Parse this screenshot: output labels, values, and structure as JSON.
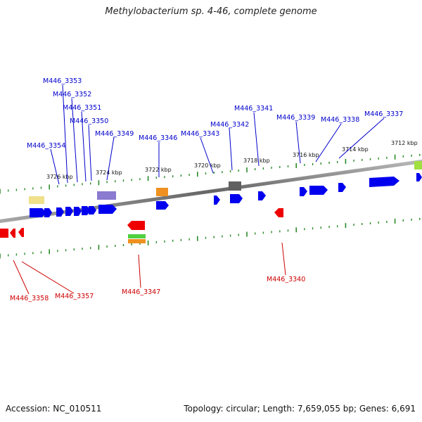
{
  "title": "Methylobacterium sp. 4-46, complete genome",
  "footer": {
    "accession": "Accession: NC_010511",
    "info": "Topology: circular; Length: 7,659,055 bp; Genes: 6,691"
  },
  "colors": {
    "forward_gene": "#0000ee",
    "reverse_gene": "#ee0000",
    "forward_label": "#0000cc",
    "reverse_label": "#cc0000",
    "tick": "#2a8a2a",
    "backbone": "#777777",
    "cog_yellow": "#f0e08a",
    "cog_purple": "#8a7ad0",
    "cog_orange": "#f09020",
    "cog_gray": "#606060",
    "cog_green": "#50d040",
    "cog_lime": "#a0e040"
  },
  "scale_labels": [
    "3726 kbp",
    "3724 kbp",
    "3722 kbp",
    "3720 kbp",
    "3718 kbp",
    "3716 kbp",
    "3714 kbp",
    "3712 kbp"
  ],
  "forward_gene_labels": [
    "M446_3354",
    "M446_3353",
    "M446_3352",
    "M446_3351",
    "M446_3350",
    "M446_3349",
    "M446_3346",
    "M446_3343",
    "M446_3342",
    "M446_3341",
    "M446_3339",
    "M446_3338",
    "M446_3337"
  ],
  "reverse_gene_labels": [
    "M446_3358",
    "M446_3357",
    "M446_3347",
    "M446_3340"
  ]
}
